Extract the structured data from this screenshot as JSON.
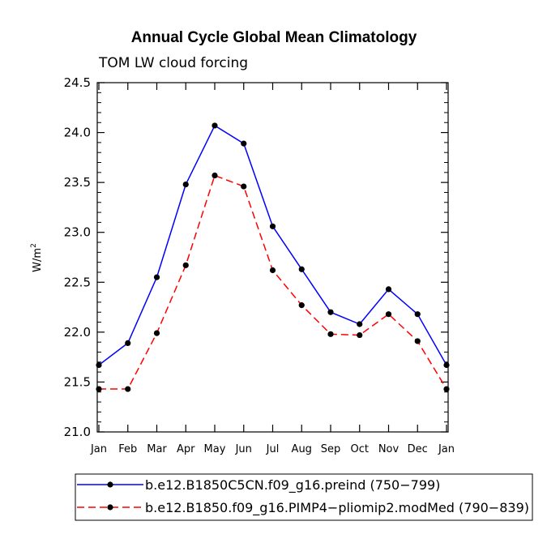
{
  "chart_data": {
    "type": "line",
    "title": "Annual Cycle Global Mean Climatology",
    "subtitle": "TOM LW cloud forcing",
    "ylabel": "W/m",
    "ylabel_sup": "2",
    "xlabel": "",
    "ylim": [
      21.0,
      24.5
    ],
    "yticks": [
      "21.0",
      "21.5",
      "22.0",
      "22.5",
      "23.0",
      "23.5",
      "24.0",
      "24.5"
    ],
    "categories": [
      "Jan",
      "Feb",
      "Mar",
      "Apr",
      "May",
      "Jun",
      "Jul",
      "Aug",
      "Sep",
      "Oct",
      "Nov",
      "Dec",
      "Jan"
    ],
    "series": [
      {
        "name": "b.e12.B1850C5CN.f09_g16.preind (750−799)",
        "color": "#0000ff",
        "dash": "solid",
        "values": [
          21.67,
          21.89,
          22.55,
          23.48,
          24.07,
          23.89,
          23.06,
          22.63,
          22.2,
          22.08,
          22.43,
          22.18,
          21.67
        ]
      },
      {
        "name": "b.e12.B1850.f09_g16.PIMP4−pliomip2.modMed (790−839)",
        "color": "#ff0000",
        "dash": "dashed",
        "values": [
          21.43,
          21.43,
          21.99,
          22.67,
          23.57,
          23.46,
          22.62,
          22.27,
          21.98,
          21.97,
          22.18,
          21.91,
          21.43
        ]
      }
    ],
    "grid": false,
    "legend_position": "bottom"
  }
}
